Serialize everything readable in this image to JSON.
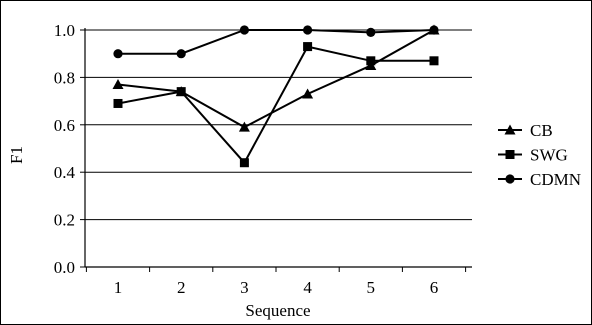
{
  "chart_data": {
    "type": "line",
    "title": "",
    "xlabel": "Sequence",
    "ylabel": "F1",
    "categories": [
      "1",
      "2",
      "3",
      "4",
      "5",
      "6"
    ],
    "ylim": [
      0.0,
      1.0
    ],
    "yticks": [
      "0.0",
      "0.2",
      "0.4",
      "0.6",
      "0.8",
      "1.0"
    ],
    "grid": "horizontal",
    "legend_position": "right",
    "series": [
      {
        "name": "CB",
        "marker": "triangle",
        "values": [
          0.77,
          0.74,
          0.59,
          0.73,
          0.85,
          1.0
        ]
      },
      {
        "name": "SWG",
        "marker": "square",
        "values": [
          0.69,
          0.74,
          0.44,
          0.93,
          0.87,
          0.87
        ]
      },
      {
        "name": "CDMN",
        "marker": "circle",
        "values": [
          0.9,
          0.9,
          1.0,
          1.0,
          0.99,
          1.0
        ]
      }
    ]
  }
}
